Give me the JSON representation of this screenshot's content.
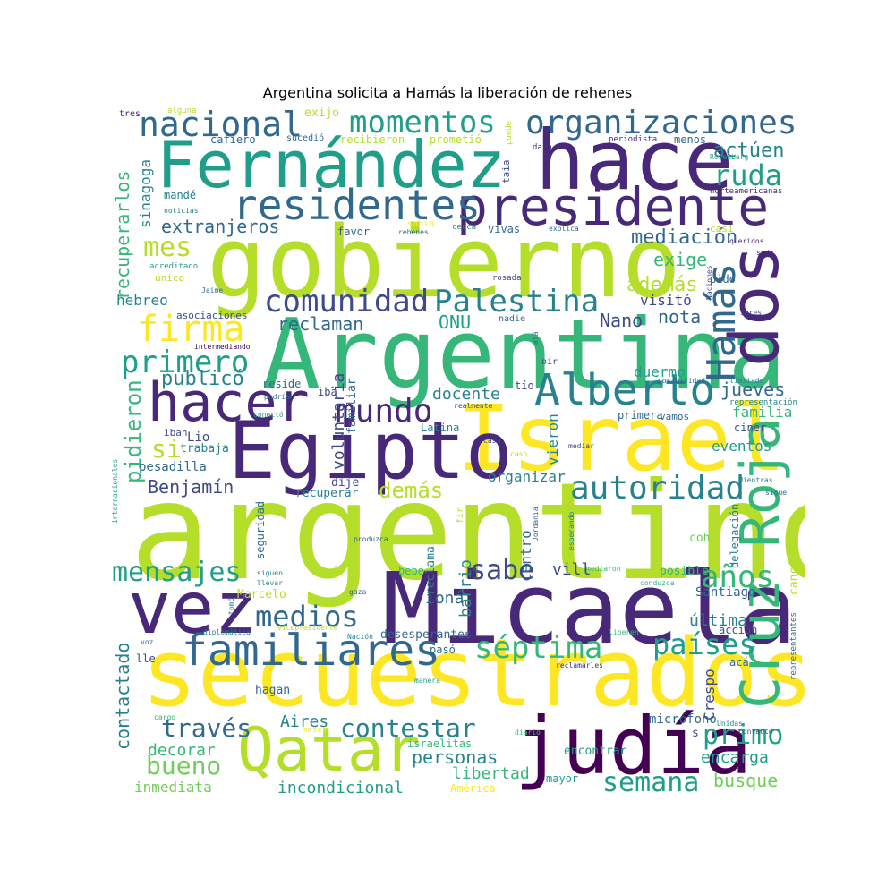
{
  "title": "Argentina solicita a Hamás la liberación de rehenes",
  "words": {
    "argentino": "argentino",
    "argentina": "Argentina",
    "gobierno": "gobierno",
    "secuestrados": "secuestrados",
    "micaela": "Micaela",
    "israel": "Israel",
    "egipto": "Egipto",
    "fernandez": "Fernández",
    "hace": "hace",
    "dos": "dos",
    "judia": "judía",
    "qatar": "Qatar",
    "vez": "vez",
    "presidente": "presidente",
    "cruz_roja": "Cruz Roja",
    "hacer": "hacer",
    "alberto": "Alberto",
    "residentes": "residentes",
    "familiares": "familiares",
    "hamas": "Hamás",
    "nacional": "nacional",
    "momentos": "momentos",
    "organizaciones": "organizaciones",
    "comunidad": "comunidad",
    "palestina": "Palestina",
    "firma": "firma",
    "primero": "primero",
    "mundo": "mundo",
    "autoridad": "autoridad",
    "medios": "medios",
    "septima": "séptima",
    "mensajes": "mensajes",
    "sabe": "sabe",
    "anos": "años",
    "paises": "países",
    "primo": "primo",
    "semana": "semana",
    "contestar": "contestar",
    "traves": "través",
    "bueno": "bueno",
    "mes": "mes",
    "ruda": "ruda",
    "actuen": "actúen",
    "extranjeros": "extranjeros",
    "mediacion": "mediación",
    "exige": "exige",
    "ademas": "además",
    "visito": "visitó",
    "nano": "Nano",
    "nota": "nota",
    "reclaman": "reclaman",
    "onu": "ONU",
    "publico": "publicó",
    "pidieron": "pidieron",
    "si": "si",
    "benjamin": "Benjamín",
    "demas": "demás",
    "docente": "docente",
    "jueves": "jueves",
    "familia": "familia",
    "eventos": "eventos",
    "duermo": "duermo",
    "personas": "personas",
    "libertad": "libertad",
    "incondicional": "incondicional",
    "inmediata": "inmediata",
    "decorar": "decorar",
    "busque": "busque",
    "encarga": "encarga",
    "aires": "Aires",
    "contactado": "contactado",
    "recuperarlos": "recuperarlos",
    "sinagoga": "sinagoga",
    "hebreo": "hebreo",
    "pesadilla": "pesadilla",
    "voluntaria": "voluntaria",
    "barrio": "barrio",
    "centro": "centro",
    "iona": "ioná",
    "vill": "vill",
    "ultima": "última",
    "accion": "acción",
    "crespo": "Crespo",
    "organizar": "organizar",
    "vieron": "vieron",
    "santiago": "Santiago",
    "posible": "posible",
    "coh": "coh",
    "delegacion": "delegación",
    "canciller": "canciller",
    "reclama": "reclama",
    "bebe": "bebé",
    "marcelo": "Marcelo",
    "desesperantes": "desesperantes",
    "paso": "pasó",
    "hagan": "hagan",
    "encontrar": "encontrar",
    "microfono": "micrófono",
    "s": "s",
    "mayor": "mayor",
    "america": "América",
    "israelitas": "israelitas",
    "latina": "Latina",
    "lio": "Lio",
    "trabaja": "trabaja",
    "dije": "dije",
    "recuperar": "recuperar",
    "seguridad": "seguridad",
    "vamos": "vamos",
    "primera": "primera",
    "ciner": "ciner",
    "representacion": "representación",
    "tio": "tío",
    "iba": "iba",
    "iban": "iban",
    "reside": "reside",
    "familiar": "familiar",
    "exijo": "exijo",
    "cafiero": "cafiero",
    "sucedio": "sucedió",
    "recibieron": "recibieron",
    "prometio": "prometió",
    "menos": "menos",
    "periodista": "periodista",
    "mande": "mandé",
    "favor": "favor",
    "vivas": "vivas",
    "casi": "casi",
    "pido": "pido",
    "asociaciones": "asociaciones",
    "unico": "único",
    "nadie": "nadie",
    "oir": "oír",
    "tres": "tres",
    "alguna": "alguna",
    "noticias": "noticias",
    "acreditado": "acreditado",
    "jaime": "Jaime",
    "intermediando": "intermediando",
    "sabia": "sabía",
    "rehenes": "rehenes",
    "cerca": "cerca",
    "explica": "explica",
    "rosada": "rosada",
    "puede": "puede",
    "taia": "taia",
    "daia": "daia",
    "rosenberg": "Rosenberg",
    "norteamericanas": "norteamericanas",
    "queridos": "queridos",
    "sede": "sede",
    "naciones": "Naciones",
    "seres": "seres",
    "ata": "atá",
    "posibilidad": "posibilidad",
    "limitado": "limitado",
    "realmente": "realmente",
    "podrian": "podrían",
    "conecto": "conectó",
    "casa": "casa",
    "caso": "caso",
    "mediar": "mediar",
    "mientras": "Mientras",
    "sigue": "sigue",
    "internacionales": "internacionales",
    "siguen": "siguen",
    "llevar": "llevar",
    "produzca": "produzca",
    "jordania": "Jordania",
    "fir": "fir",
    "esperando": "esperando",
    "mediaron": "mediaron",
    "conduzca": "conduzca",
    "agote": "agoté",
    "gaza": "gaza",
    "tomo": "tomó",
    "diplomatica": "diplomática",
    "vicepresidente": "vicepresidente",
    "nacion": "Nación",
    "liberen": "liberen",
    "voz": "voz",
    "lle": "lle",
    "manera": "manera",
    "reclamarles": "reclamarles",
    "aca": "acá",
    "representantes": "representantes",
    "cargo": "cargo",
    "meses": "meses",
    "diario": "diario",
    "unidas": "Unidas",
    "contacto": "contacto"
  }
}
